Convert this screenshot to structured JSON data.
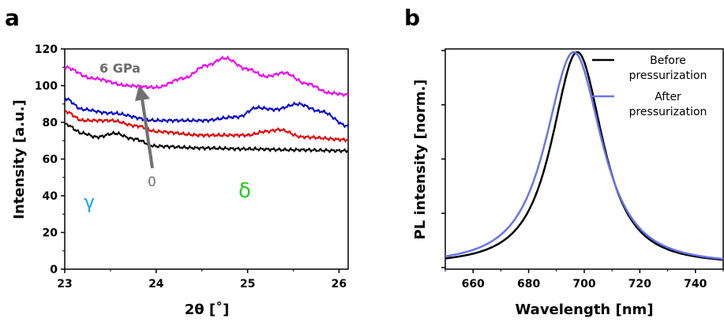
{
  "panels": {
    "a": {
      "label": "a",
      "xlabel": "2θ [˚]",
      "ylabel": "Intensity [a.u.]",
      "arrow_top_label": "6 GPa",
      "arrow_bottom_label": "0",
      "phase_gamma": "γ",
      "phase_delta": "δ"
    },
    "b": {
      "label": "b",
      "xlabel": "Wavelength [nm]",
      "ylabel": "PL intensity [norm.]",
      "legend": [
        "Before\npressurization",
        "After\npressurization"
      ]
    }
  },
  "chart_data": [
    {
      "type": "line",
      "panel": "a",
      "xlabel": "2θ [˚]",
      "ylabel": "Intensity [a.u.]",
      "xlim": [
        23,
        26.1
      ],
      "ylim": [
        0,
        120
      ],
      "xticks": [
        23,
        24,
        25,
        26
      ],
      "yticks": [
        0,
        20,
        40,
        60,
        80,
        100,
        120
      ],
      "series": [
        {
          "color": "#000000",
          "x": [
            23.0,
            23.2,
            23.35,
            23.55,
            23.75,
            24.0,
            24.5,
            25.0,
            25.5,
            26.1
          ],
          "y": [
            79,
            74,
            72,
            74,
            71,
            67,
            66,
            65.5,
            65,
            64.5
          ]
        },
        {
          "color": "#e00000",
          "x": [
            23.0,
            23.2,
            23.5,
            23.8,
            24.0,
            24.5,
            25.0,
            25.2,
            25.35,
            25.6,
            26.1
          ],
          "y": [
            86,
            81,
            81,
            78,
            75,
            73,
            73,
            75,
            76,
            72,
            70.5
          ]
        },
        {
          "color": "#0000cc",
          "x": [
            23.0,
            23.2,
            23.5,
            24.0,
            24.5,
            24.9,
            25.1,
            25.3,
            25.55,
            25.8,
            26.1
          ],
          "y": [
            93,
            87,
            85,
            81,
            81,
            83,
            88,
            87,
            90,
            86,
            78
          ]
        },
        {
          "color": "#ee00ee",
          "x": [
            23.0,
            23.3,
            23.7,
            24.0,
            24.3,
            24.55,
            24.75,
            25.0,
            25.2,
            25.4,
            25.65,
            25.9,
            26.1
          ],
          "y": [
            110,
            104,
            100,
            99,
            104,
            111,
            115,
            109,
            105,
            107,
            101,
            96,
            95
          ]
        }
      ]
    },
    {
      "type": "line",
      "panel": "b",
      "xlabel": "Wavelength [nm]",
      "ylabel": "PL intensity [norm.]",
      "xlim": [
        650,
        750
      ],
      "xticks": [
        660,
        680,
        700,
        720,
        740
      ],
      "series": [
        {
          "name": "Before\npressurization",
          "color": "#000000",
          "center": 697.5,
          "width": 13.5
        },
        {
          "name": "After\npressurization",
          "color": "#6a73ee",
          "center": 696.2,
          "width": 14.8
        }
      ]
    }
  ]
}
